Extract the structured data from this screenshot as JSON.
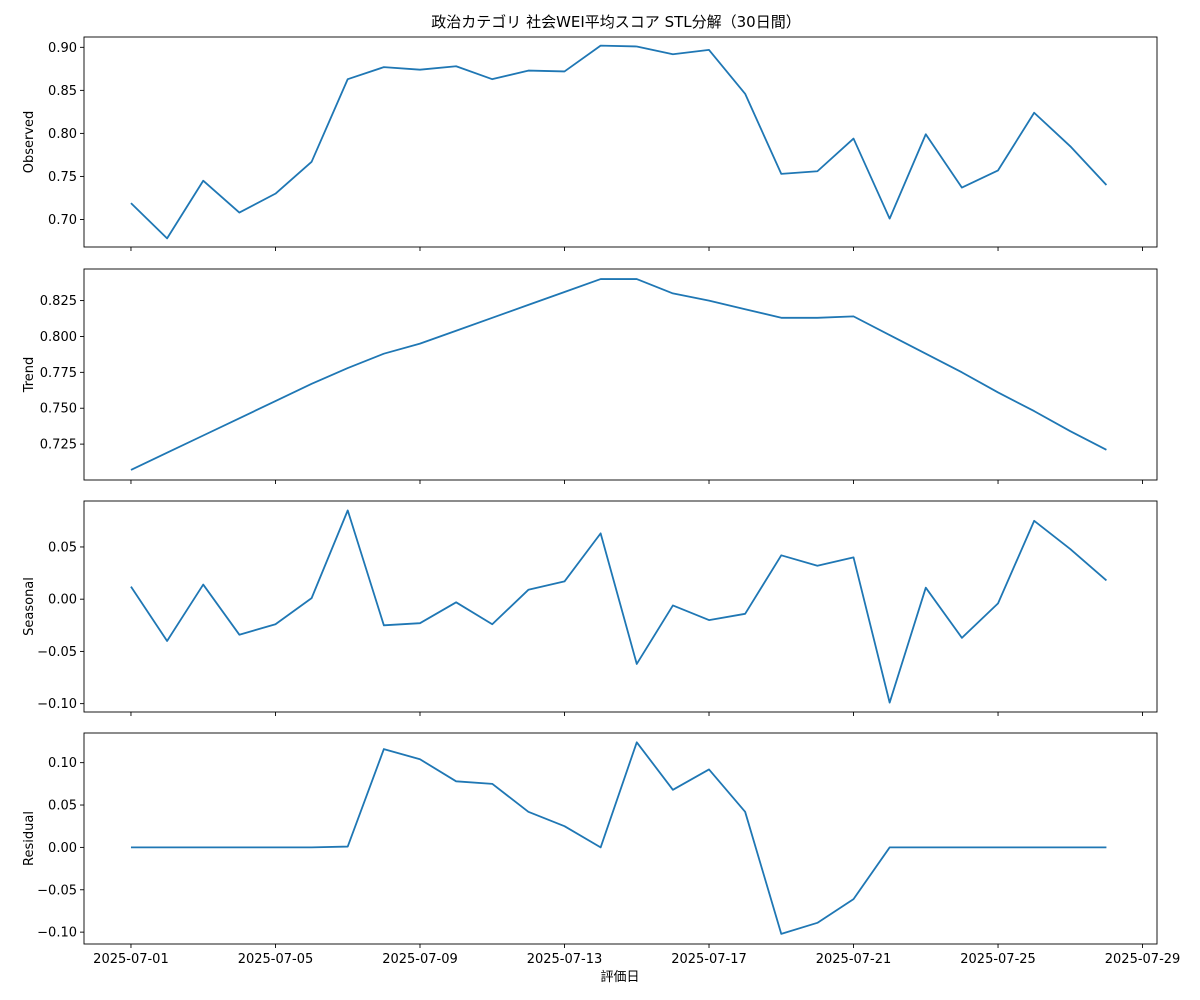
{
  "chart_data": {
    "type": "line",
    "title": "政治カテゴリ 社会WEI平均スコア STL分解（30日間）",
    "xlabel": "評価日",
    "x": [
      "2025-07-01",
      "2025-07-02",
      "2025-07-03",
      "2025-07-04",
      "2025-07-05",
      "2025-07-06",
      "2025-07-07",
      "2025-07-08",
      "2025-07-09",
      "2025-07-10",
      "2025-07-11",
      "2025-07-12",
      "2025-07-13",
      "2025-07-14",
      "2025-07-15",
      "2025-07-16",
      "2025-07-17",
      "2025-07-18",
      "2025-07-19",
      "2025-07-20",
      "2025-07-21",
      "2025-07-22",
      "2025-07-23",
      "2025-07-24",
      "2025-07-25",
      "2025-07-26",
      "2025-07-27",
      "2025-07-28"
    ],
    "x_ticks": [
      "2025-07-01",
      "2025-07-05",
      "2025-07-09",
      "2025-07-13",
      "2025-07-17",
      "2025-07-21",
      "2025-07-25",
      "2025-07-29"
    ],
    "x_range": [
      "2025-06-29.7",
      "2025-07-29.4"
    ],
    "line_color": "#1f77b4",
    "grid": false,
    "panels": [
      {
        "ylabel": "Observed",
        "ylim": [
          0.668,
          0.912
        ],
        "yticks": [
          "0.70",
          "0.75",
          "0.80",
          "0.85",
          "0.90"
        ],
        "values": [
          0.719,
          0.678,
          0.745,
          0.708,
          0.73,
          0.767,
          0.863,
          0.877,
          0.874,
          0.878,
          0.863,
          0.873,
          0.872,
          0.902,
          0.901,
          0.892,
          0.897,
          0.846,
          0.753,
          0.756,
          0.794,
          0.701,
          0.799,
          0.737,
          0.757,
          0.824,
          0.785,
          0.74
        ]
      },
      {
        "ylabel": "Trend",
        "ylim": [
          0.7,
          0.847
        ],
        "yticks": [
          "0.725",
          "0.750",
          "0.775",
          "0.800",
          "0.825"
        ],
        "values": [
          0.707,
          0.719,
          0.731,
          0.743,
          0.755,
          0.767,
          0.778,
          0.788,
          0.795,
          0.804,
          0.813,
          0.822,
          0.831,
          0.84,
          0.84,
          0.83,
          0.825,
          0.819,
          0.813,
          0.813,
          0.814,
          0.801,
          0.788,
          0.775,
          0.761,
          0.748,
          0.734,
          0.721
        ]
      },
      {
        "ylabel": "Seasonal",
        "ylim": [
          -0.108,
          0.094
        ],
        "yticks": [
          "0.05",
          "0.00",
          "−0.05",
          "−0.10"
        ],
        "values": [
          0.012,
          -0.04,
          0.014,
          -0.034,
          -0.024,
          0.001,
          0.085,
          -0.025,
          -0.023,
          -0.003,
          -0.024,
          0.009,
          0.017,
          0.063,
          -0.062,
          -0.006,
          -0.02,
          -0.014,
          0.042,
          0.032,
          0.04,
          -0.099,
          0.011,
          -0.037,
          -0.004,
          0.075,
          0.048,
          0.018
        ]
      },
      {
        "ylabel": "Residual",
        "ylim": [
          -0.114,
          0.135
        ],
        "yticks": [
          "0.10",
          "0.05",
          "0.00",
          "−0.05",
          "−0.10"
        ],
        "values": [
          0.0,
          0.0,
          0.0,
          0.0,
          0.0,
          0.0,
          0.001,
          0.116,
          0.104,
          0.078,
          0.075,
          0.042,
          0.025,
          0.0,
          0.124,
          0.068,
          0.092,
          0.042,
          -0.102,
          -0.089,
          -0.061,
          0.0,
          0.0,
          0.0,
          0.0,
          0.0,
          0.0,
          0.0
        ]
      }
    ]
  }
}
